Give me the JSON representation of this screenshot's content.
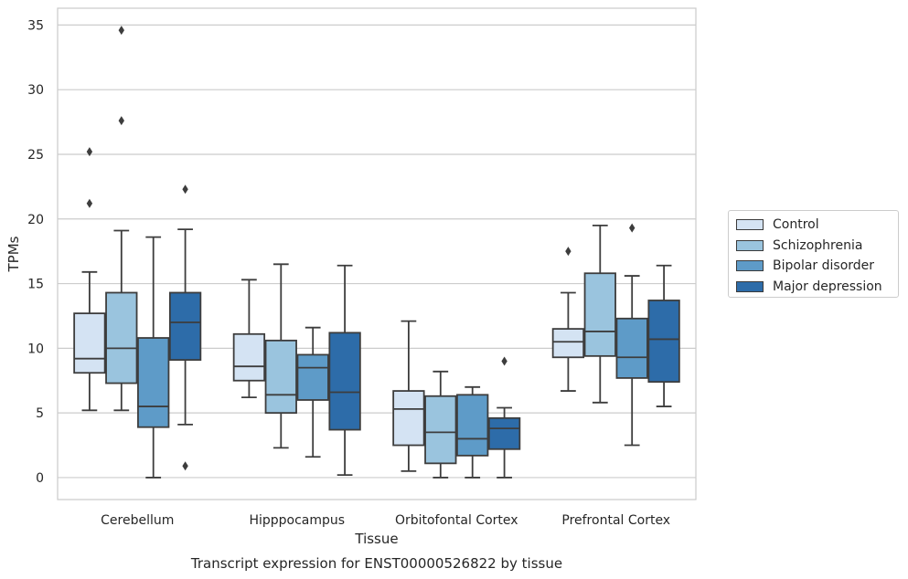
{
  "chart_data": {
    "type": "box",
    "title": "",
    "caption": "Transcript expression for ENST00000526822 by tissue",
    "xlabel": "Tissue",
    "ylabel": "TPMs",
    "ylim": [
      -1.7,
      36.3
    ],
    "yticks": [
      "0",
      "5",
      "10",
      "15",
      "20",
      "25",
      "30",
      "35"
    ],
    "grid": true,
    "legend_position": "right",
    "categories": [
      "Cerebellum",
      "Hipppocampus",
      "Orbitofontal Cortex",
      "Prefrontal Cortex"
    ],
    "series": [
      {
        "name": "Control",
        "color": "#d4e3f3",
        "boxes": [
          {
            "whislo": 5.2,
            "q1": 8.1,
            "med": 9.2,
            "q3": 12.7,
            "whishi": 15.9,
            "fliers": [
              21.2,
              25.2
            ]
          },
          {
            "whislo": 6.2,
            "q1": 7.5,
            "med": 8.6,
            "q3": 11.1,
            "whishi": 15.3,
            "fliers": []
          },
          {
            "whislo": 0.5,
            "q1": 2.5,
            "med": 5.3,
            "q3": 6.7,
            "whishi": 12.1,
            "fliers": []
          },
          {
            "whislo": 6.7,
            "q1": 9.3,
            "med": 10.5,
            "q3": 11.5,
            "whishi": 14.3,
            "fliers": [
              17.5
            ]
          }
        ]
      },
      {
        "name": "Schizophrenia",
        "color": "#9ac4de",
        "boxes": [
          {
            "whislo": 5.2,
            "q1": 7.3,
            "med": 10.0,
            "q3": 14.3,
            "whishi": 19.1,
            "fliers": [
              27.6,
              34.6
            ]
          },
          {
            "whislo": 2.3,
            "q1": 5.0,
            "med": 6.4,
            "q3": 10.6,
            "whishi": 16.5,
            "fliers": []
          },
          {
            "whislo": 0.0,
            "q1": 1.1,
            "med": 3.5,
            "q3": 6.3,
            "whishi": 8.2,
            "fliers": []
          },
          {
            "whislo": 5.8,
            "q1": 9.4,
            "med": 11.3,
            "q3": 15.8,
            "whishi": 19.5,
            "fliers": []
          }
        ]
      },
      {
        "name": "Bipolar disorder",
        "color": "#5e9bc8",
        "boxes": [
          {
            "whislo": 0.0,
            "q1": 3.9,
            "med": 5.5,
            "q3": 10.8,
            "whishi": 18.6,
            "fliers": []
          },
          {
            "whislo": 1.6,
            "q1": 6.0,
            "med": 8.5,
            "q3": 9.5,
            "whishi": 11.6,
            "fliers": []
          },
          {
            "whislo": 0.0,
            "q1": 1.7,
            "med": 3.0,
            "q3": 6.4,
            "whishi": 7.0,
            "fliers": []
          },
          {
            "whislo": 2.5,
            "q1": 7.7,
            "med": 9.3,
            "q3": 12.3,
            "whishi": 15.6,
            "fliers": [
              19.3
            ]
          }
        ]
      },
      {
        "name": "Major depression",
        "color": "#2d6ca9",
        "boxes": [
          {
            "whislo": 4.1,
            "q1": 9.1,
            "med": 12.0,
            "q3": 14.3,
            "whishi": 19.2,
            "fliers": [
              0.9,
              22.3
            ]
          },
          {
            "whislo": 0.2,
            "q1": 3.7,
            "med": 6.6,
            "q3": 11.2,
            "whishi": 16.4,
            "fliers": []
          },
          {
            "whislo": 0.0,
            "q1": 2.2,
            "med": 3.8,
            "q3": 4.6,
            "whishi": 5.4,
            "fliers": [
              9.0
            ]
          },
          {
            "whislo": 5.5,
            "q1": 7.4,
            "med": 10.7,
            "q3": 13.7,
            "whishi": 16.4,
            "fliers": []
          }
        ]
      }
    ]
  }
}
